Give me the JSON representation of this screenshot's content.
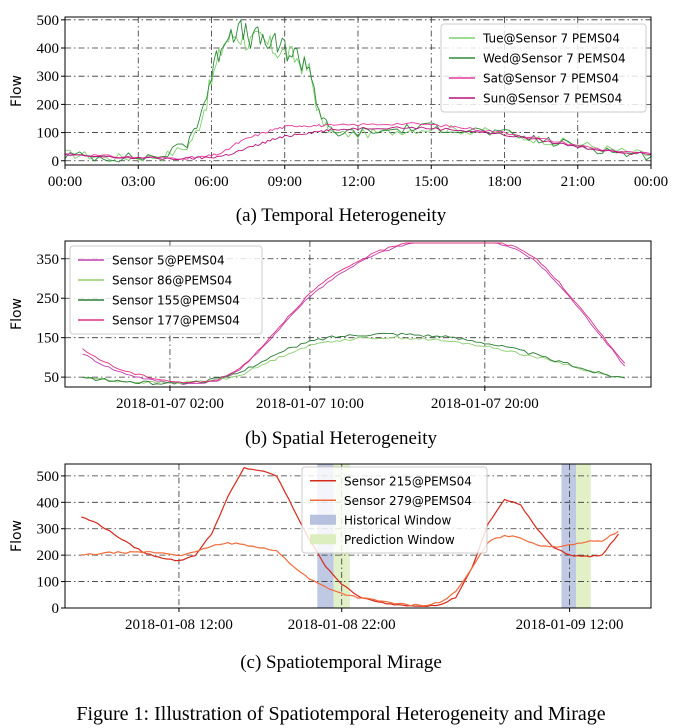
{
  "figure": {
    "caption": "Figure 1: Illustration of Spatiotemporal Heterogeneity and Mirage",
    "subcaptions": [
      "(a) Temporal Heterogeneity",
      "(b) Spatial Heterogeneity",
      "(c) Spatiotemporal Mirage"
    ]
  },
  "chart_data": [
    {
      "type": "line",
      "title": "(a) Temporal Heterogeneity",
      "ylabel": "Flow",
      "xlabel": "",
      "xlim": [
        0,
        24
      ],
      "ylim": [
        -15,
        510
      ],
      "xticks": [
        0,
        3,
        6,
        9,
        12,
        15,
        18,
        21,
        24
      ],
      "xtick_labels": [
        "00:00",
        "03:00",
        "06:00",
        "09:00",
        "12:00",
        "15:00",
        "18:00",
        "21:00",
        "00:00"
      ],
      "yticks": [
        0,
        100,
        200,
        300,
        400,
        500
      ],
      "ytick_labels": [
        "0",
        "100",
        "200",
        "300",
        "400",
        "500"
      ],
      "grid": true,
      "legend_position": "top-right",
      "x": [
        0,
        1,
        2,
        3,
        4,
        5,
        5.5,
        6,
        6.5,
        7,
        7.5,
        8,
        8.5,
        9,
        9.5,
        10,
        10.5,
        11,
        12,
        13,
        14,
        15,
        16,
        17,
        18,
        19,
        20,
        21,
        22,
        23,
        24
      ],
      "series": [
        {
          "name": "Tue@Sensor 7 PEMS04",
          "color": "#7ccf6d",
          "jitter": 40,
          "values": [
            25,
            18,
            12,
            12,
            15,
            50,
            120,
            280,
            420,
            450,
            420,
            430,
            400,
            380,
            360,
            320,
            140,
            95,
            95,
            100,
            110,
            115,
            110,
            105,
            95,
            80,
            70,
            60,
            45,
            30,
            20
          ]
        },
        {
          "name": "Wed@Sensor 7 PEMS04",
          "color": "#2e8b3a",
          "jitter": 45,
          "values": [
            20,
            15,
            12,
            12,
            18,
            60,
            150,
            300,
            440,
            470,
            440,
            430,
            410,
            400,
            370,
            340,
            150,
            100,
            100,
            105,
            115,
            120,
            115,
            105,
            95,
            80,
            65,
            55,
            40,
            25,
            15
          ]
        },
        {
          "name": "Sat@Sensor 7 PEMS04",
          "color": "#e6399b",
          "jitter": 12,
          "values": [
            25,
            20,
            15,
            12,
            10,
            10,
            12,
            18,
            30,
            60,
            80,
            95,
            110,
            120,
            125,
            125,
            125,
            125,
            128,
            130,
            132,
            128,
            120,
            110,
            100,
            85,
            70,
            55,
            40,
            30,
            25
          ]
        },
        {
          "name": "Sun@Sensor 7 PEMS04",
          "color": "#b5127a",
          "jitter": 12,
          "values": [
            20,
            16,
            12,
            10,
            8,
            8,
            10,
            12,
            18,
            30,
            45,
            60,
            75,
            85,
            95,
            100,
            105,
            110,
            115,
            118,
            118,
            115,
            110,
            102,
            92,
            80,
            65,
            50,
            38,
            28,
            22
          ]
        }
      ]
    },
    {
      "type": "line",
      "title": "(b) Spatial Heterogeneity",
      "ylabel": "Flow",
      "xlabel": "",
      "xlim": [
        -4,
        29.5
      ],
      "ylim": [
        25,
        395
      ],
      "xticks": [
        2,
        10,
        20
      ],
      "xtick_labels": [
        "2018-01-07 02:00",
        "2018-01-07 10:00",
        "2018-01-07 20:00"
      ],
      "yticks": [
        50,
        150,
        250,
        350
      ],
      "ytick_labels": [
        "50",
        "150",
        "250",
        "350"
      ],
      "grid": true,
      "legend_position": "top-left",
      "x": [
        -3,
        -2,
        -1,
        0,
        1,
        2,
        3,
        4,
        5,
        6,
        7,
        8,
        9,
        10,
        11,
        12,
        13,
        14,
        15,
        16,
        17,
        18,
        19,
        20,
        21,
        22,
        23,
        24,
        25,
        26,
        27,
        28
      ],
      "series": [
        {
          "name": "Sensor 5@PEMS04",
          "color": "#c03fb0",
          "jitter": 6,
          "values": [
            110,
            85,
            65,
            52,
            42,
            37,
            33,
            35,
            45,
            70,
            110,
            160,
            210,
            255,
            290,
            320,
            345,
            365,
            380,
            392,
            398,
            402,
            400,
            395,
            385,
            370,
            340,
            295,
            245,
            190,
            135,
            78
          ]
        },
        {
          "name": "Sensor 86@PEMS04",
          "color": "#8ecf70",
          "jitter": 8,
          "values": [
            50,
            45,
            40,
            38,
            36,
            36,
            37,
            40,
            45,
            55,
            75,
            95,
            115,
            130,
            140,
            145,
            148,
            150,
            150,
            148,
            145,
            140,
            135,
            128,
            120,
            110,
            100,
            90,
            78,
            65,
            55,
            48
          ]
        },
        {
          "name": "Sensor 155@PEMS04",
          "color": "#2a7d35",
          "jitter": 10,
          "values": [
            48,
            44,
            40,
            37,
            35,
            35,
            37,
            40,
            48,
            62,
            85,
            105,
            125,
            140,
            150,
            155,
            158,
            160,
            160,
            158,
            155,
            150,
            145,
            138,
            128,
            118,
            105,
            92,
            80,
            66,
            56,
            48
          ]
        },
        {
          "name": "Sensor 177@PEMS04",
          "color": "#e0307e",
          "jitter": 6,
          "values": [
            120,
            95,
            72,
            58,
            48,
            40,
            36,
            38,
            48,
            72,
            115,
            165,
            215,
            262,
            298,
            325,
            350,
            370,
            385,
            398,
            405,
            408,
            405,
            400,
            390,
            375,
            348,
            302,
            250,
            195,
            140,
            85
          ]
        }
      ]
    },
    {
      "type": "line",
      "title": "(c) Spatiotemporal Mirage",
      "ylabel": "Flow",
      "xlabel": "",
      "xlim": [
        5,
        41
      ],
      "ylim": [
        0,
        545
      ],
      "xticks": [
        12,
        22,
        36
      ],
      "xtick_labels": [
        "2018-01-08 12:00",
        "2018-01-08 22:00",
        "2018-01-09 12:00"
      ],
      "yticks": [
        0,
        100,
        200,
        300,
        400,
        500
      ],
      "ytick_labels": [
        "0",
        "100",
        "200",
        "300",
        "400",
        "500"
      ],
      "grid": true,
      "legend_position": "top-center",
      "x": [
        6,
        7,
        8,
        9,
        10,
        11,
        12,
        13,
        14,
        15,
        16,
        17,
        18,
        19,
        20,
        21,
        22,
        23,
        24,
        25,
        26,
        27,
        28,
        29,
        30,
        31,
        32,
        33,
        34,
        35,
        36,
        37,
        38,
        39
      ],
      "series": [
        {
          "name": "Sensor 215@PEMS04",
          "color": "#d42a1c",
          "jitter": 6,
          "values": [
            345,
            320,
            280,
            240,
            205,
            190,
            178,
            200,
            280,
            420,
            530,
            520,
            500,
            380,
            260,
            160,
            90,
            45,
            25,
            15,
            10,
            8,
            10,
            40,
            150,
            320,
            410,
            390,
            300,
            230,
            200,
            195,
            200,
            280
          ]
        },
        {
          "name": "Sensor 279@PEMS04",
          "color": "#f26b3a",
          "jitter": 8,
          "values": [
            200,
            205,
            210,
            210,
            212,
            208,
            200,
            210,
            235,
            245,
            240,
            230,
            215,
            160,
            110,
            80,
            55,
            40,
            30,
            20,
            12,
            10,
            20,
            60,
            150,
            250,
            275,
            265,
            240,
            230,
            240,
            250,
            255,
            290
          ]
        }
      ],
      "shaded_regions": [
        {
          "name": "Historical Window",
          "color": "#aab7d9",
          "x_ranges": [
            [
              20.5,
              21.5
            ],
            [
              35.5,
              36.4
            ]
          ]
        },
        {
          "name": "Prediction Window",
          "color": "#d7ebb3",
          "x_ranges": [
            [
              21.5,
              22.5
            ],
            [
              36.4,
              37.3
            ]
          ]
        }
      ]
    }
  ]
}
